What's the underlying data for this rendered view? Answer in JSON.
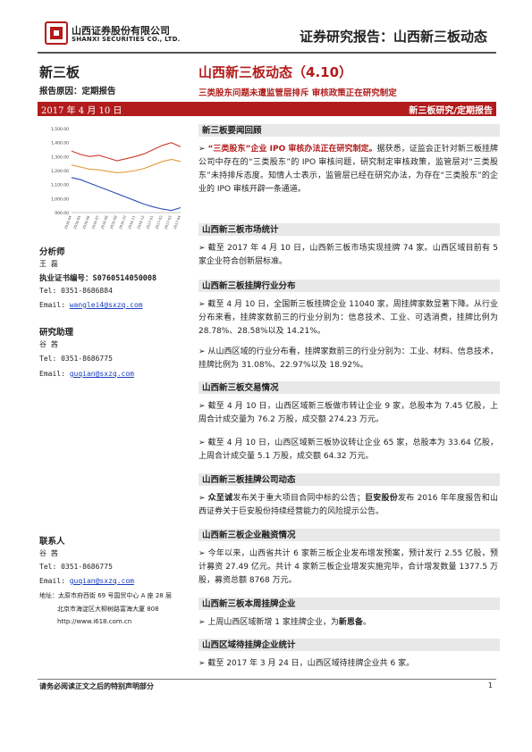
{
  "header": {
    "company_cn": "山西证券股份有限公司",
    "company_en": "SHANXI SECURITIES CO., LTD.",
    "report_title": "证券研究报告：山西新三板动态"
  },
  "left": {
    "category": "新三板",
    "report_reason": "报告原因：定期报告",
    "date": "2017 年 4 月 10 日",
    "analyst_label": "分析师",
    "analyst_name": "王 磊",
    "cert_label": "执业证书编号：",
    "cert_no": "S0760514050008",
    "analyst_tel": "Tel:  0351-8686884",
    "analyst_email_label": "Email: ",
    "analyst_email": "wanglei4@sxzq.com",
    "assistant_label": "研究助理",
    "assistant_name": "谷 茜",
    "assistant_tel": "Tel:  0351-8686775",
    "assistant_email_label": "Email: ",
    "assistant_email": "guqian@sxzq.com",
    "contact_label": "联系人",
    "contact_name": "谷 茜",
    "contact_tel": "Tel:  0351-8686775",
    "contact_email_label": "Email: ",
    "contact_email": "guqian@sxzq.com",
    "address_1": "地址：太原市府西街 69 号国贸中心 A 座 28 层",
    "address_2": "北京市海淀区大柳树路富海大厦 808",
    "website": "http://www.i618.com.cn"
  },
  "main": {
    "title": "山西新三板动态（4.10）",
    "subtitle": "三类股东问题未遭监管层排斥    审核政策正在研究制定",
    "band_right": "新三板研究/定期报告",
    "sections": [
      {
        "head": "新三板要闻回顾",
        "p1_strong": "“三类股东”企业 IPO 审核办法正在研究制定。",
        "p1_rest": "据获悉，证监会正针对新三板挂牌公司中存在的“三类股东”的 IPO 审核问题，研究制定审核政策，监管层对“三类股东”未持排斥态度。知情人士表示，监管层已经在研究办法，为存在“三类股东”的企业的 IPO 审核开辟一条通道。"
      },
      {
        "head": "山西新三板市场统计",
        "p1": "截至 2017 年 4 月 10 日，山西新三板市场实现挂牌 74 家。山西区域目前有 5 家企业符合创新层标准。"
      },
      {
        "head": "山西新三板挂牌行业分布",
        "p1": "截至 4 月 10 日，全国新三板挂牌企业 11040 家，周挂牌家数显著下降。从行业分布来看，挂牌家数前三的行业分别为：信息技术、工业、可选消费，挂牌比例为 28.78%、28.58%以及 14.21%。",
        "p2": "从山西区域的行业分布看，挂牌家数前三的行业分别为：工业、材料、信息技术，挂牌比例为 31.08%、22.97%以及 18.92%。"
      },
      {
        "head": "山西新三板交易情况",
        "p1": "截至 4 月 10 日，山西区域新三板做市转让企业 9 家，总股本为 7.45 亿股，上周合计成交量为 76.2 万股，成交额 274.23 万元。",
        "p2": "截至 4 月 10 日，山西区域新三板协议转让企业 65 家，总股本为 33.64 亿股，上周合计成交量 5.1 万股，成交额 64.32 万元。"
      },
      {
        "head": "山西新三板挂牌公司动态",
        "p1_strong1": "众至诚",
        "p1_mid": "发布关于重大项目合同中标的公告；",
        "p1_strong2": "巨安股份",
        "p1_rest": "发布 2016 年年度报告和山西证券关于巨安股份持续经营能力的风险提示公告。"
      },
      {
        "head": "山西新三板企业融资情况",
        "p1": "今年以来，山西省共计 6 家新三板企业发布增发预案，预计发行 2.55 亿股，预计募资 27.49 亿元。共计 4 家新三板企业增发实施完毕，合计增发数量 1377.5 万股，募资总额 8768 万元。"
      },
      {
        "head": "山西新三板本周挂牌企业",
        "p1_pre": "上周山西区域新增 1 家挂牌企业，为",
        "p1_strong": "新恩备",
        "p1_post": "。"
      },
      {
        "head": "山西区域待挂牌企业统计",
        "p1": "截至 2017 年 3 月 24 日，山西区域待挂牌企业共 6 家。"
      }
    ]
  },
  "footer": {
    "note": "请务必阅读正文之后的特别声明部分",
    "page": "1"
  },
  "chart_data": {
    "type": "line",
    "y_tick_labels": [
      "1,500.00",
      "1,400.00",
      "1,300.00",
      "1,200.00",
      "1,100.00",
      "1,000.00",
      "900.00"
    ],
    "x_tick_labels": [
      "2016-04",
      "2016-05",
      "2016-06",
      "2016-07",
      "2016-08",
      "2016-09",
      "2016-10",
      "2016-11",
      "2016-12",
      "2017-01",
      "2017-02",
      "2017-03",
      "2017-04"
    ],
    "series": [
      {
        "color": "#d03a2a",
        "values": [
          1340,
          1315,
          1300,
          1310,
          1290,
          1270,
          1285,
          1300,
          1320,
          1350,
          1380,
          1400,
          1370
        ]
      },
      {
        "color": "#e39a3a",
        "values": [
          1240,
          1225,
          1210,
          1205,
          1195,
          1185,
          1190,
          1200,
          1215,
          1240,
          1265,
          1280,
          1265
        ]
      },
      {
        "color": "#2a4fb8",
        "values": [
          1150,
          1135,
          1110,
          1085,
          1060,
          1035,
          1010,
          985,
          960,
          940,
          925,
          915,
          935
        ]
      }
    ],
    "ylim": [
      900,
      1500
    ]
  }
}
